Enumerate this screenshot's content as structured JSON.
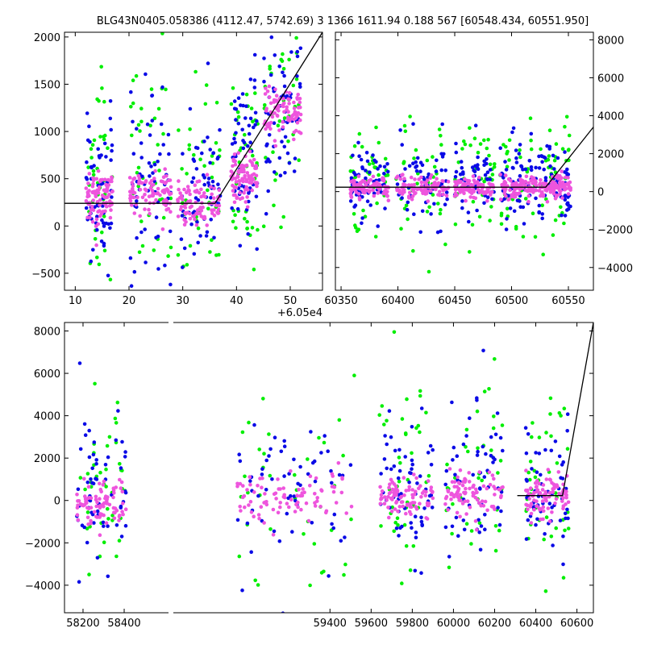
{
  "title": "BLG43N0405.058386 (4112.47, 5742.69)   3 1366 1611.94 0.188 567 [60548.434, 60551.950]",
  "colors": {
    "series_a": "#00ee00",
    "series_b": "#0a0ae6",
    "series_c": "#ee55dd",
    "model_line": "#000000"
  },
  "chart_data": [
    {
      "type": "scatter",
      "panel": "top-left",
      "x_offset_label": "+6.05e4",
      "xlim": [
        8,
        56
      ],
      "ylim": [
        -680,
        2050
      ],
      "xticks": [
        10,
        20,
        30,
        40,
        50
      ],
      "yticks": [
        -500,
        0,
        500,
        1000,
        1500,
        2000
      ],
      "ytick_side": "left",
      "grid": false,
      "clusters": [
        {
          "x": [
            12,
            17
          ],
          "ycenter": 300,
          "spread": 650
        },
        {
          "x": [
            20,
            28
          ],
          "ycenter": 350,
          "spread": 700
        },
        {
          "x": [
            29,
            37
          ],
          "ycenter": 250,
          "spread": 650
        },
        {
          "x": [
            39,
            44
          ],
          "ycenter": 500,
          "spread": 700
        },
        {
          "x": [
            45,
            52
          ],
          "ycenter": 1200,
          "spread": 700
        }
      ],
      "model_line": {
        "x": [
          8,
          36,
          56
        ],
        "y": [
          240,
          240,
          2050
        ]
      }
    },
    {
      "type": "scatter",
      "panel": "top-right",
      "xlim": [
        60345,
        60572
      ],
      "ylim": [
        -5200,
        8400
      ],
      "xticks": [
        60350,
        60400,
        60450,
        60500,
        60550
      ],
      "yticks": [
        -4000,
        -2000,
        0,
        2000,
        4000,
        6000,
        8000
      ],
      "ytick_side": "right",
      "grid": false,
      "clusters": [
        {
          "x": [
            60358,
            60392
          ],
          "ycenter": 200,
          "spread": 1500
        },
        {
          "x": [
            60398,
            60445
          ],
          "ycenter": 200,
          "spread": 1700
        },
        {
          "x": [
            60450,
            60485
          ],
          "ycenter": 200,
          "spread": 1500
        },
        {
          "x": [
            60490,
            60522
          ],
          "ycenter": 250,
          "spread": 1600
        },
        {
          "x": [
            60524,
            60552
          ],
          "ycenter": 300,
          "spread": 1600
        }
      ],
      "model_line": {
        "x": [
          60345,
          60530,
          60572
        ],
        "y": [
          230,
          230,
          3400
        ]
      }
    },
    {
      "type": "scatter",
      "panel": "bottom",
      "xlim": [
        58110,
        60680
      ],
      "ylim": [
        -5300,
        8400
      ],
      "xticks": [
        58200,
        58400,
        59400,
        59600,
        59800,
        60000,
        60200,
        60400,
        60600
      ],
      "yticks": [
        -4000,
        -2000,
        0,
        2000,
        4000,
        6000,
        8000
      ],
      "ytick_side": "left",
      "grid": false,
      "clusters": [
        {
          "x": [
            58170,
            58410
          ],
          "ycenter": -100,
          "spread": 2600
        },
        {
          "x": [
            58950,
            59520
          ],
          "ycenter": 250,
          "spread": 3200
        },
        {
          "x": [
            59640,
            59900
          ],
          "ycenter": 150,
          "spread": 2700
        },
        {
          "x": [
            59960,
            60240
          ],
          "ycenter": 300,
          "spread": 2800
        },
        {
          "x": [
            60350,
            60560
          ],
          "ycenter": 200,
          "spread": 2400
        }
      ],
      "model_line": {
        "x": [
          60310,
          60530,
          60680
        ],
        "y": [
          230,
          230,
          8400
        ]
      }
    }
  ]
}
